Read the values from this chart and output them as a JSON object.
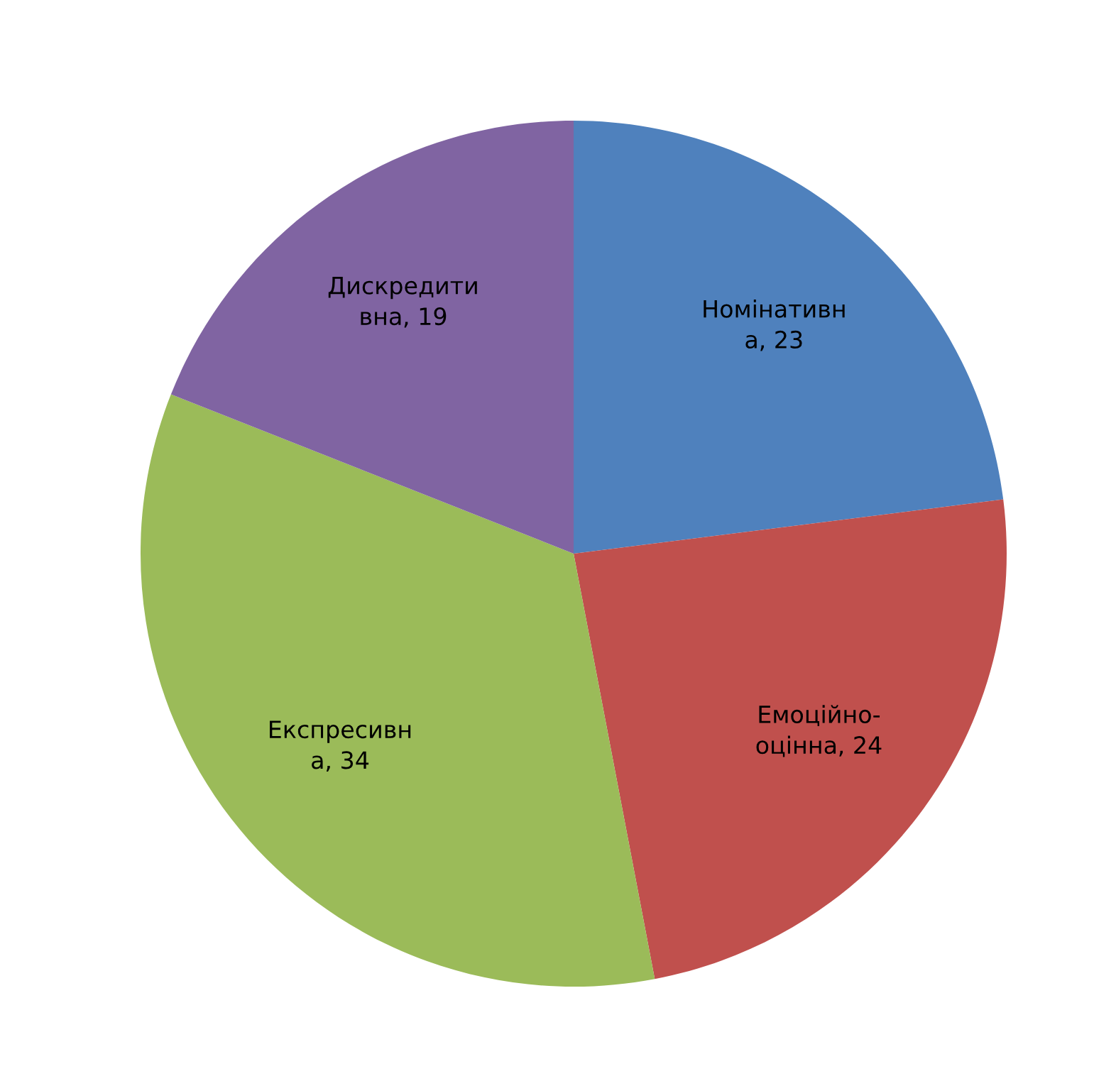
{
  "chart_data": {
    "type": "pie",
    "categories": [
      "Номінативна",
      "Емоційно-оцінна",
      "Експресивна",
      "Дискредитивна"
    ],
    "values": [
      23,
      24,
      34,
      19
    ],
    "colors": [
      "#4f81bd",
      "#c0504d",
      "#9bbb59",
      "#8064a2"
    ],
    "value_labels": [
      ", 23",
      ", 24",
      ", 34",
      ", 19"
    ],
    "legend": false
  }
}
